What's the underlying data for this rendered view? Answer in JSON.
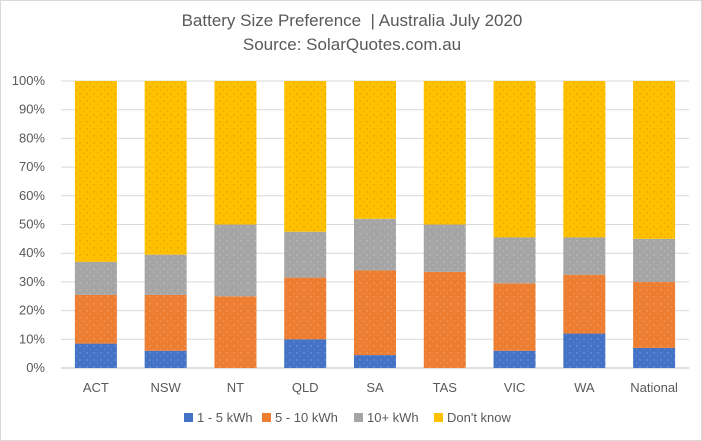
{
  "chart_data": {
    "type": "bar",
    "stacked": true,
    "percent_stacked": true,
    "title": "Battery Size Preference  | Australia July 2020",
    "subtitle": "Source: SolarQuotes.com.au",
    "categories": [
      "ACT",
      "NSW",
      "NT",
      "QLD",
      "SA",
      "TAS",
      "VIC",
      "WA",
      "National"
    ],
    "series": [
      {
        "name": "1 - 5 kWh",
        "color": "#4472c4",
        "values": [
          8.5,
          6,
          0,
          10,
          4.5,
          0,
          6,
          12,
          7
        ]
      },
      {
        "name": "5 - 10 kWh",
        "color": "#ed7d31",
        "values": [
          17,
          19.5,
          25,
          21.5,
          29.5,
          33.5,
          23.5,
          20.5,
          23
        ]
      },
      {
        "name": "10+ kWh",
        "color": "#a5a5a5",
        "values": [
          11.5,
          14,
          25,
          16,
          18,
          16.5,
          16,
          13,
          15
        ]
      },
      {
        "name": "Don't know",
        "color": "#ffc000",
        "values": [
          63,
          60.5,
          50,
          52.5,
          48,
          50,
          54.5,
          54.5,
          55
        ]
      }
    ],
    "yticks": [
      "0%",
      "10%",
      "20%",
      "30%",
      "40%",
      "50%",
      "60%",
      "70%",
      "80%",
      "90%",
      "100%"
    ],
    "ylim": [
      0,
      100
    ],
    "xlabel": "",
    "ylabel": "",
    "grid": true,
    "legend_position": "bottom"
  }
}
